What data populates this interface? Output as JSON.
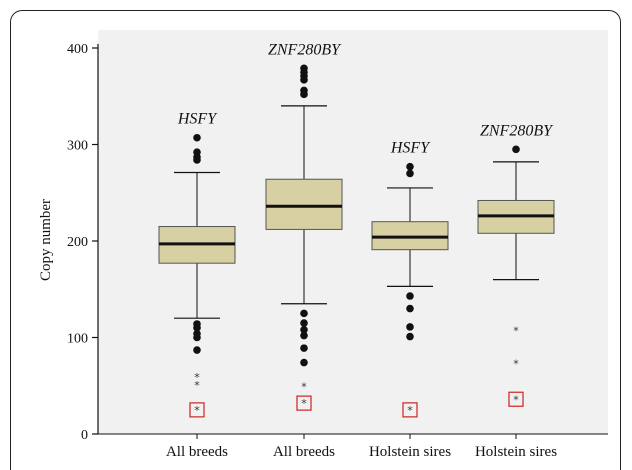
{
  "chart_data": {
    "type": "box",
    "ylabel": "Copy number",
    "ylim": [
      0,
      400
    ],
    "yticks": [
      "0",
      "100",
      "200",
      "300",
      "400"
    ],
    "colors": {
      "box_fill": "#d7d0a2",
      "plot_bg": "#f1f1f1",
      "marker": "#111111",
      "highlight": "#d23030"
    },
    "groups": [
      {
        "category": "All breeds",
        "gene": "HSFY",
        "whisker_low": 120,
        "q1": 177,
        "median": 197,
        "q3": 215,
        "whisker_high": 271,
        "outliers": [
          307,
          292,
          287,
          284,
          114,
          110,
          104,
          100,
          87
        ],
        "extremes": [
          59,
          51,
          25
        ],
        "highlighted": 25
      },
      {
        "category": "All breeds",
        "gene": "ZNF280BY",
        "whisker_low": 135,
        "q1": 212,
        "median": 236,
        "q3": 264,
        "whisker_high": 340,
        "outliers": [
          379,
          375,
          371,
          367,
          356,
          352,
          125,
          115,
          108,
          102,
          89,
          74
        ],
        "extremes": [
          49,
          32
        ],
        "highlighted": 32
      },
      {
        "category": "Holstein sires",
        "gene": "HSFY",
        "whisker_low": 153,
        "q1": 191,
        "median": 204,
        "q3": 220,
        "whisker_high": 255,
        "outliers": [
          277,
          270,
          143,
          130,
          111,
          101
        ],
        "extremes": [
          25
        ],
        "highlighted": 25
      },
      {
        "category": "Holstein sires",
        "gene": "ZNF280BY",
        "whisker_low": 160,
        "q1": 208,
        "median": 226,
        "q3": 242,
        "whisker_high": 282,
        "outliers": [
          295
        ],
        "extremes": [
          107,
          73,
          36
        ],
        "highlighted": 36
      }
    ]
  }
}
